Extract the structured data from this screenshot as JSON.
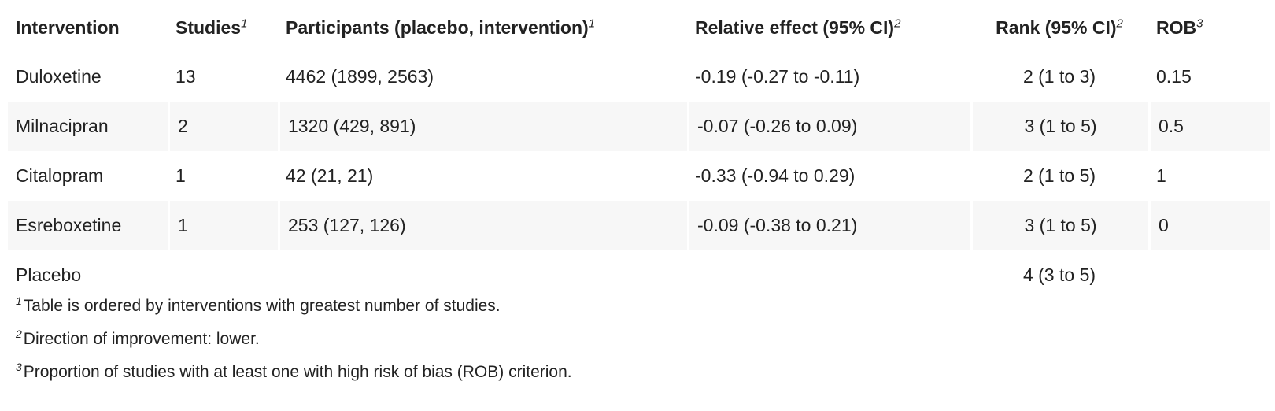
{
  "table": {
    "headers": [
      {
        "label": "Intervention",
        "sup": ""
      },
      {
        "label": "Studies",
        "sup": "1"
      },
      {
        "label": "Participants (placebo, intervention)",
        "sup": "1"
      },
      {
        "label": "Relative effect (95% CI)",
        "sup": "2"
      },
      {
        "label": "Rank (95% CI)",
        "sup": "2"
      },
      {
        "label": "ROB",
        "sup": "3"
      }
    ],
    "rows": [
      [
        "Duloxetine",
        "13",
        "4462 (1899, 2563)",
        "-0.19 (-0.27 to -0.11)",
        "2 (1 to 3)",
        "0.15"
      ],
      [
        "Milnacipran",
        "2",
        "1320 (429, 891)",
        "-0.07 (-0.26 to 0.09)",
        "3 (1 to 5)",
        "0.5"
      ],
      [
        "Citalopram",
        "1",
        "42 (21, 21)",
        "-0.33 (-0.94 to 0.29)",
        "2 (1 to 5)",
        "1"
      ],
      [
        "Esreboxetine",
        "1",
        "253 (127, 126)",
        "-0.09 (-0.38 to 0.21)",
        "3 (1 to 5)",
        "0"
      ],
      [
        "Placebo",
        "",
        "",
        "",
        "4 (3 to 5)",
        ""
      ]
    ]
  },
  "footnotes": [
    {
      "sup": "1",
      "text": "Table is ordered by interventions with greatest number of studies."
    },
    {
      "sup": "2",
      "text": "Direction of improvement: lower."
    },
    {
      "sup": "3",
      "text": "Proportion of studies with at least one with high risk of bias (ROB) criterion."
    }
  ],
  "colors": {
    "text": "#222222",
    "row_shade": "#f7f7f7",
    "background": "#ffffff"
  }
}
